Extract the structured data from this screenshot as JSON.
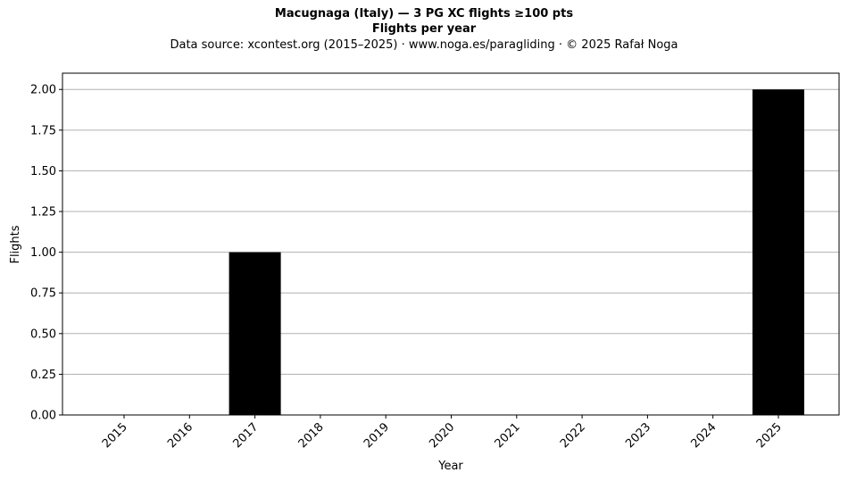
{
  "chart_data": {
    "type": "bar",
    "title": "Macugnaga (Italy)  —  3 PG XC flights ≥100 pts",
    "subtitle": "Flights per year",
    "source_line": "Data source: xcontest.org (2015–2025)  ·  www.noga.es/paragliding  ·  © 2025 Rafał Noga",
    "xlabel": "Year",
    "ylabel": "Flights",
    "categories": [
      "2015",
      "2016",
      "2017",
      "2018",
      "2019",
      "2020",
      "2021",
      "2022",
      "2023",
      "2024",
      "2025"
    ],
    "values": [
      0,
      0,
      1,
      0,
      0,
      0,
      0,
      0,
      0,
      0,
      2
    ],
    "ylim": [
      0,
      2.1
    ],
    "yticks": [
      "0.00",
      "0.25",
      "0.50",
      "0.75",
      "1.00",
      "1.25",
      "1.50",
      "1.75",
      "2.00"
    ],
    "grid": "y",
    "bar_color": "#000000"
  }
}
